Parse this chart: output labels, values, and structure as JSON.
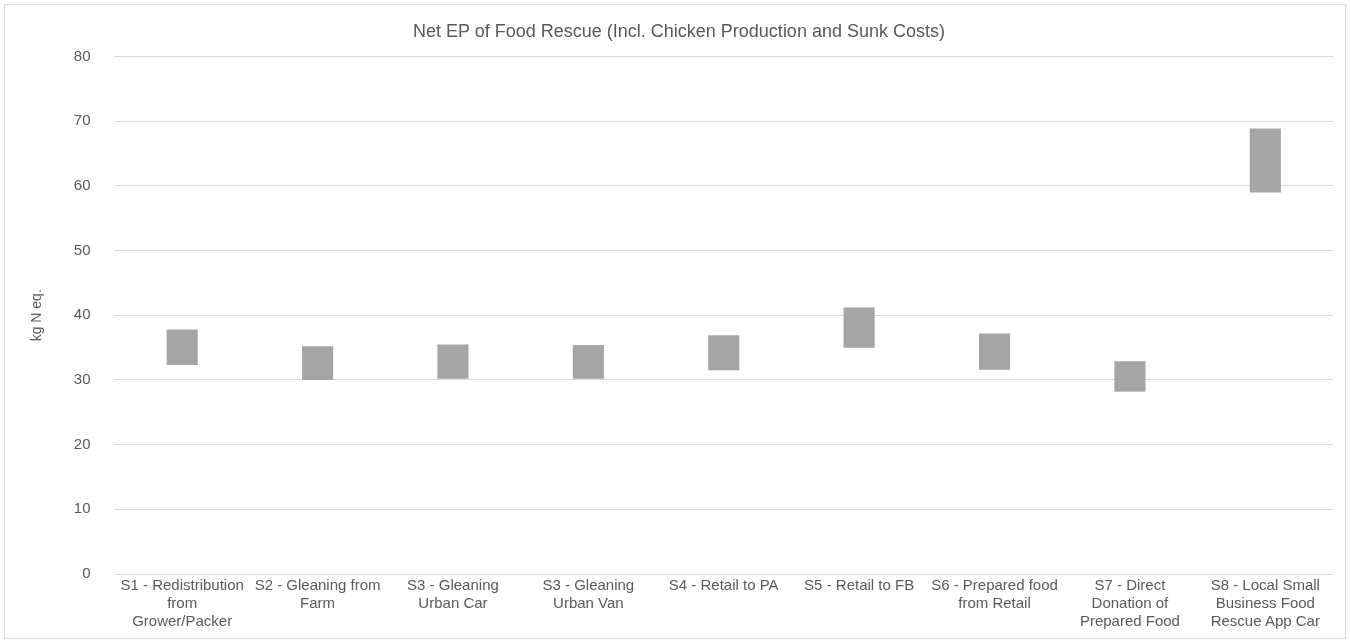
{
  "chart_data": {
    "type": "bar",
    "title": "Net EP of Food Rescue (Incl. Chicken Production and Sunk Costs)",
    "ylabel": "kg N eq.",
    "categories": [
      "S1 - Redistribution from Grower/Packer",
      "S2 - Gleaning from Farm",
      "S3 - Gleaning Urban Car",
      "S3 - Gleaning Urban Van",
      "S4 - Retail to PA",
      "S5 - Retail to FB",
      "S6 - Prepared food from Retail",
      "S7 - Direct Donation of Prepared Food",
      "S8 - Local Small Business Food Rescue App Car"
    ],
    "base": [
      32.3,
      30.0,
      30.2,
      30.2,
      31.5,
      35.0,
      31.6,
      28.2,
      59.0
    ],
    "values": [
      5.5,
      5.2,
      5.3,
      5.2,
      5.4,
      6.2,
      5.6,
      4.7,
      9.9
    ],
    "color": "#a5a5a5",
    "ylim": [
      0,
      80
    ],
    "yticks": [
      0,
      10,
      20,
      30,
      40,
      50,
      60,
      70,
      80
    ],
    "grid": "y",
    "legend": false
  }
}
